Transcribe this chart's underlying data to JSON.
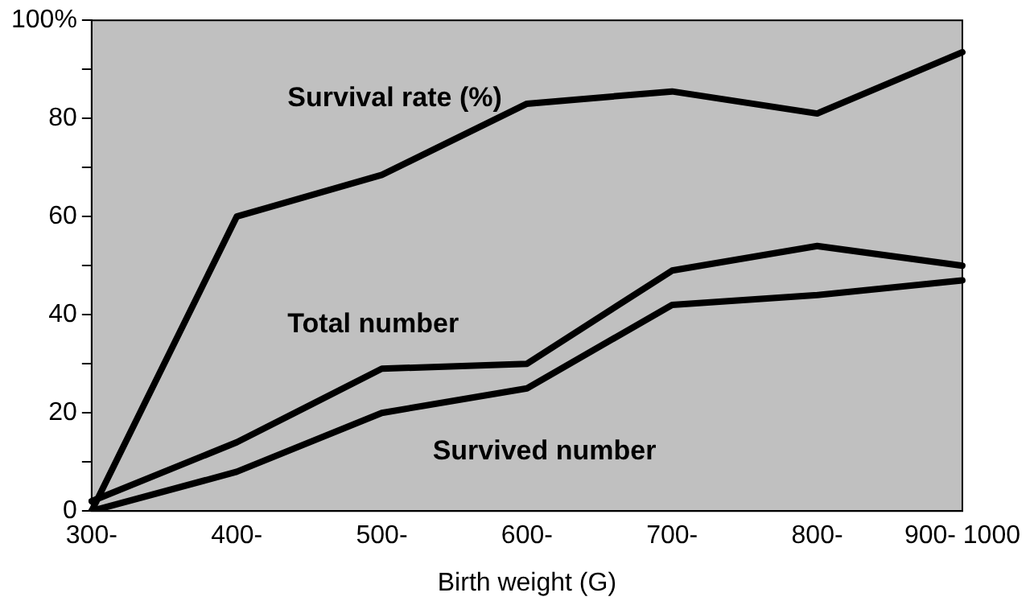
{
  "chart_data": {
    "type": "line",
    "xlabel": "Birth weight (G)",
    "categories": [
      "300-",
      "400-",
      "500-",
      "600-",
      "700-",
      "800-",
      "900- 1000"
    ],
    "series": [
      {
        "name": "Survival rate (%)",
        "color": "#000000",
        "values": [
          0,
          60,
          68.5,
          83,
          85.5,
          81,
          93.5
        ]
      },
      {
        "name": "Total number",
        "color": "#000000",
        "values": [
          2,
          14,
          29,
          30,
          49,
          54,
          50
        ]
      },
      {
        "name": "Survived number",
        "color": "#000000",
        "values": [
          0,
          8,
          20,
          25,
          42,
          44,
          47
        ]
      }
    ],
    "ylim": [
      0,
      100
    ],
    "yticks": [
      0,
      {
        "value": 10,
        "label": null
      },
      20,
      {
        "value": 30,
        "label": null
      },
      40,
      {
        "value": 50,
        "label": null
      },
      60,
      {
        "value": 70,
        "label": null
      },
      80,
      {
        "value": 90,
        "label": null
      },
      {
        "value": 100,
        "label": "100%"
      }
    ],
    "grid": false,
    "legend": false,
    "marker": "none",
    "line_style": "solid"
  }
}
